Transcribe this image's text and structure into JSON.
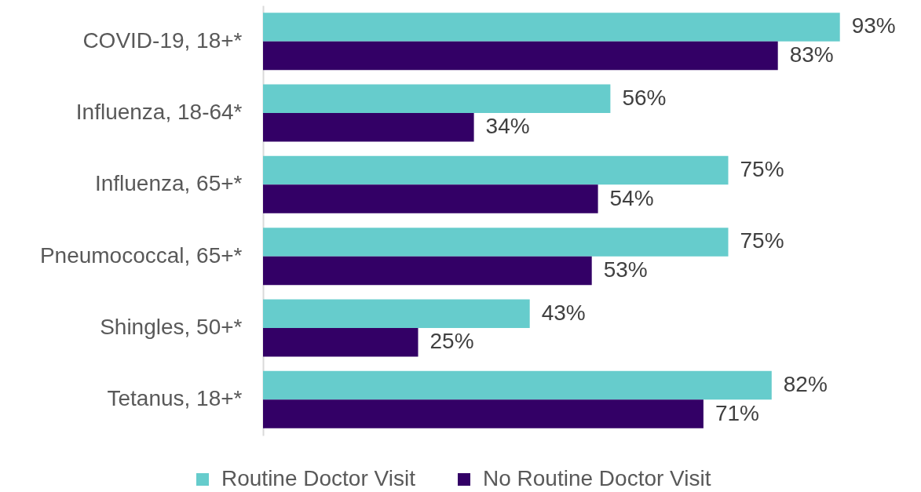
{
  "chart_data": {
    "type": "bar",
    "orientation": "horizontal",
    "categories": [
      "COVID-19, 18+*",
      "Influenza, 18-64*",
      "Influenza, 65+*",
      "Pneumococcal, 65+*",
      "Shingles, 50+*",
      "Tetanus, 18+*"
    ],
    "series": [
      {
        "name": "Routine Doctor Visit",
        "color": "#66cccc",
        "values": [
          93,
          56,
          75,
          75,
          43,
          82
        ],
        "value_labels": [
          "93%",
          "56%",
          "75%",
          "75%",
          "43%",
          "82%"
        ]
      },
      {
        "name": "No Routine Doctor Visit",
        "color": "#330066",
        "values": [
          83,
          34,
          54,
          53,
          25,
          71
        ],
        "value_labels": [
          "83%",
          "34%",
          "54%",
          "53%",
          "25%",
          "71%"
        ]
      }
    ],
    "tick_labels": "y",
    "legend": "bottom"
  }
}
